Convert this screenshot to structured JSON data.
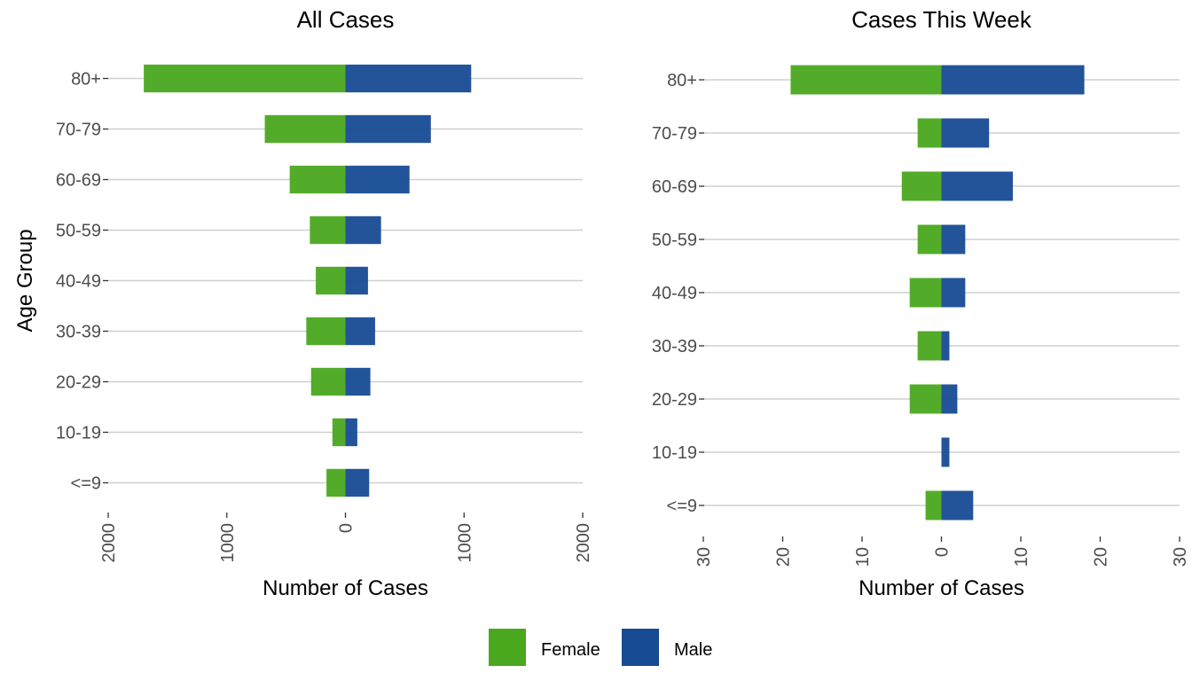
{
  "colors": {
    "female": "#4aa81e",
    "male": "#174b94"
  },
  "legend": {
    "items": [
      {
        "label": "Female",
        "color": "#4aa81e"
      },
      {
        "label": "Male",
        "color": "#174b94"
      }
    ],
    "placement": "bottom"
  },
  "chart_data": [
    {
      "type": "bar",
      "orientation": "horizontal-diverging",
      "title": "All Cases",
      "xlabel": "Number of Cases",
      "ylabel": "Age Group",
      "xlim": [
        -2000,
        2000
      ],
      "xticks": [
        -2000,
        -1000,
        0,
        1000,
        2000
      ],
      "xtick_labels": [
        "2000",
        "1000",
        "0",
        "1000",
        "2000"
      ],
      "grid": true,
      "categories": [
        "<=9",
        "10-19",
        "20-29",
        "30-39",
        "40-49",
        "50-59",
        "60-69",
        "70-79",
        "80+"
      ],
      "series": [
        {
          "name": "Female",
          "values": [
            160,
            110,
            290,
            330,
            250,
            300,
            470,
            680,
            1700
          ]
        },
        {
          "name": "Male",
          "values": [
            200,
            100,
            210,
            250,
            190,
            300,
            540,
            720,
            1060
          ]
        }
      ]
    },
    {
      "type": "bar",
      "orientation": "horizontal-diverging",
      "title": "Cases This Week",
      "xlabel": "Number of Cases",
      "ylabel": "",
      "xlim": [
        -30,
        30
      ],
      "xticks": [
        -30,
        -20,
        -10,
        0,
        10,
        20,
        30
      ],
      "xtick_labels": [
        "30",
        "20",
        "10",
        "0",
        "10",
        "20",
        "30"
      ],
      "grid": true,
      "categories": [
        "<=9",
        "10-19",
        "20-29",
        "30-39",
        "40-49",
        "50-59",
        "60-69",
        "70-79",
        "80+"
      ],
      "series": [
        {
          "name": "Female",
          "values": [
            2,
            0,
            4,
            3,
            4,
            3,
            5,
            3,
            19
          ]
        },
        {
          "name": "Male",
          "values": [
            4,
            1,
            2,
            1,
            3,
            3,
            9,
            6,
            18
          ]
        }
      ]
    }
  ]
}
